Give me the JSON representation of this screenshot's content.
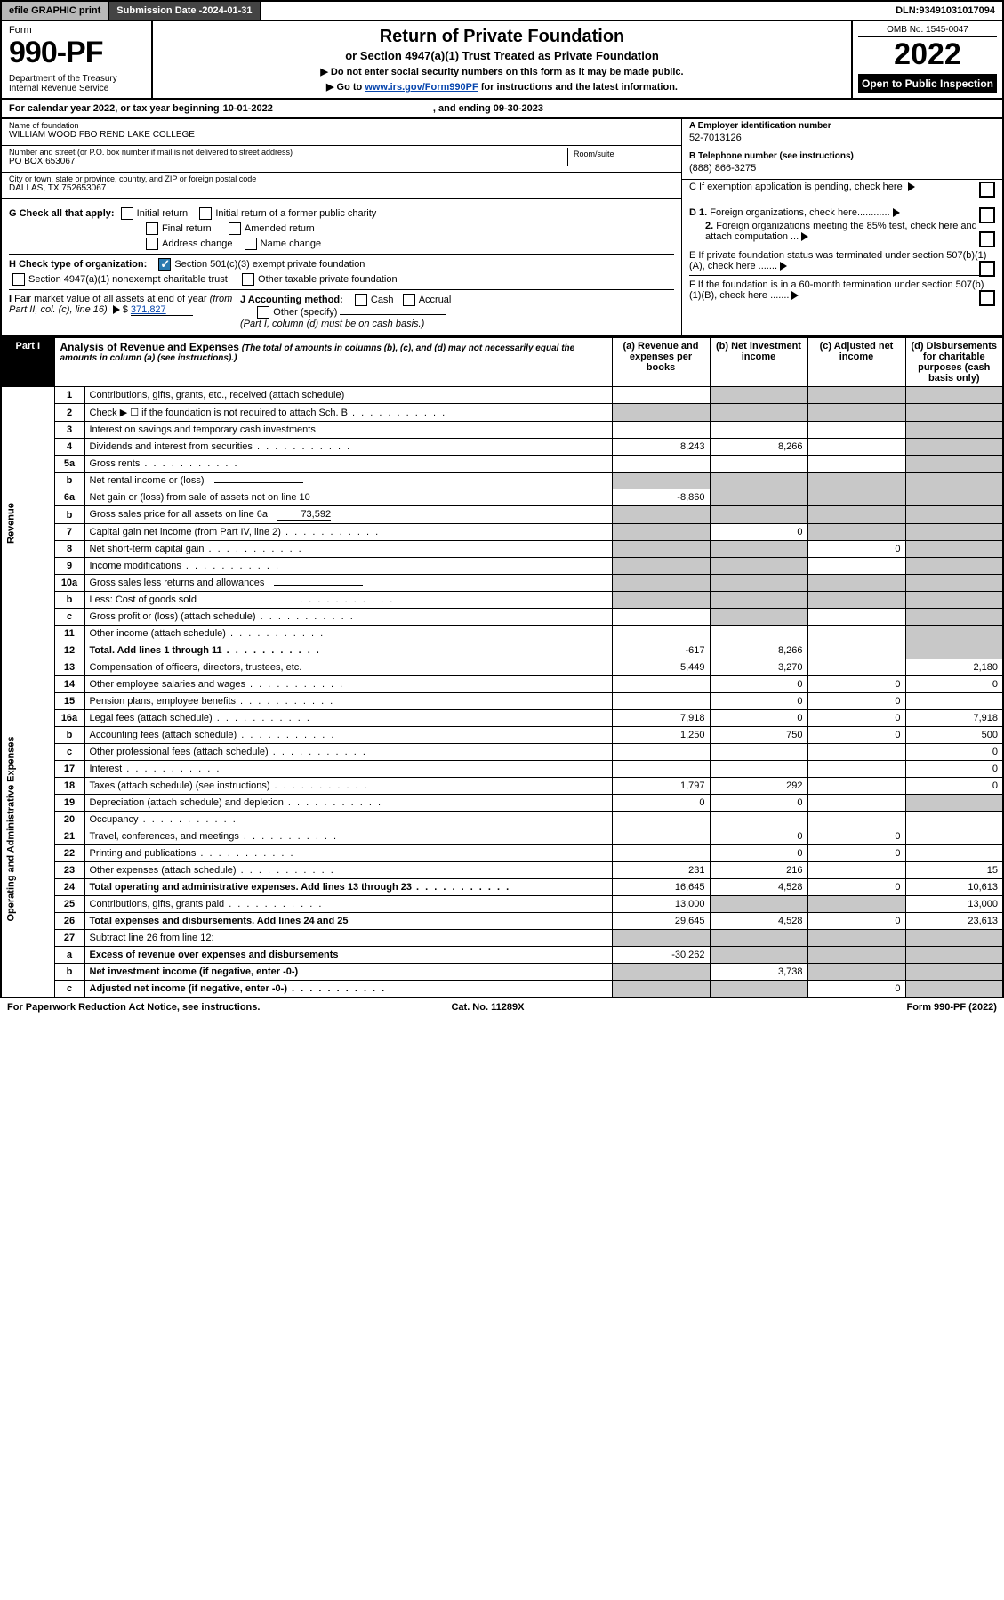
{
  "topbar": {
    "efile": "efile GRAPHIC print",
    "subdate_label": "Submission Date - ",
    "subdate": "2024-01-31",
    "dln_label": "DLN: ",
    "dln": "93491031017094"
  },
  "header": {
    "form_label": "Form",
    "form_no": "990-PF",
    "dept": "Department of the Treasury\nInternal Revenue Service",
    "title": "Return of Private Foundation",
    "sub1": "or Section 4947(a)(1) Trust Treated as Private Foundation",
    "sub2": "▶ Do not enter social security numbers on this form as it may be made public.",
    "sub3_pre": "▶ Go to ",
    "sub3_link": "www.irs.gov/Form990PF",
    "sub3_post": " for instructions and the latest information.",
    "omb": "OMB No. 1545-0047",
    "year": "2022",
    "open": "Open to Public Inspection"
  },
  "calrow": {
    "text": "For calendar year 2022, or tax year beginning ",
    "begin": "10-01-2022",
    "mid": ", and ending ",
    "end": "09-30-2023"
  },
  "foundation": {
    "name_lbl": "Name of foundation",
    "name": "WILLIAM WOOD FBO REND LAKE COLLEGE",
    "addr_lbl": "Number and street (or P.O. box number if mail is not delivered to street address)",
    "addr": "PO BOX 653067",
    "room_lbl": "Room/suite",
    "city_lbl": "City or town, state or province, country, and ZIP or foreign postal code",
    "city": "DALLAS, TX  752653067"
  },
  "right": {
    "ein_lbl": "A Employer identification number",
    "ein": "52-7013126",
    "tel_lbl": "B Telephone number (see instructions)",
    "tel": "(888) 866-3275",
    "c": "C If exemption application is pending, check here",
    "d1": "D 1. Foreign organizations, check here............",
    "d2": "2. Foreign organizations meeting the 85% test, check here and attach computation ...",
    "e": "E  If private foundation status was terminated under section 507(b)(1)(A), check here .......",
    "f": "F  If the foundation is in a 60-month termination under section 507(b)(1)(B), check here .......",
    "c_lbl": "C"
  },
  "g": {
    "lbl": "G Check all that apply:",
    "opts": [
      "Initial return",
      "Initial return of a former public charity",
      "Final return",
      "Amended return",
      "Address change",
      "Name change"
    ]
  },
  "h": {
    "lbl": "H Check type of organization:",
    "o1": "Section 501(c)(3) exempt private foundation",
    "o2": "Section 4947(a)(1) nonexempt charitable trust",
    "o3": "Other taxable private foundation"
  },
  "i": {
    "lbl": "I Fair market value of all assets at end of year (from Part II, col. (c), line 16) ▶ $",
    "val": "371,827"
  },
  "j": {
    "lbl": "J Accounting method:",
    "cash": "Cash",
    "accrual": "Accrual",
    "other": "Other (specify)",
    "note": "(Part I, column (d) must be on cash basis.)"
  },
  "part1": {
    "label": "Part I",
    "title": "Analysis of Revenue and Expenses",
    "title_note": "(The total of amounts in columns (b), (c), and (d) may not necessarily equal the amounts in column (a) (see instructions).)",
    "cols": {
      "a": "(a) Revenue and expenses per books",
      "b": "(b) Net investment income",
      "c": "(c) Adjusted net income",
      "d": "(d) Disbursements for charitable purposes (cash basis only)"
    },
    "vlabels": {
      "rev": "Revenue",
      "exp": "Operating and Administrative Expenses"
    }
  },
  "rows": [
    {
      "n": "1",
      "d": "Contributions, gifts, grants, etc., received (attach schedule)",
      "a": "",
      "b": "",
      "c": "",
      "dcol": "",
      "grey": [
        "b",
        "c",
        "d"
      ]
    },
    {
      "n": "2",
      "d": "Check ▶ ☐ if the foundation is not required to attach Sch. B",
      "a": "",
      "b": "",
      "c": "",
      "dcol": "",
      "grey": [
        "a",
        "b",
        "c",
        "d"
      ],
      "dots": true
    },
    {
      "n": "3",
      "d": "Interest on savings and temporary cash investments",
      "a": "",
      "b": "",
      "c": "",
      "dcol": "",
      "grey": [
        "d"
      ]
    },
    {
      "n": "4",
      "d": "Dividends and interest from securities",
      "a": "8,243",
      "b": "8,266",
      "c": "",
      "dcol": "",
      "grey": [
        "d"
      ],
      "dots": true
    },
    {
      "n": "5a",
      "d": "Gross rents",
      "a": "",
      "b": "",
      "c": "",
      "dcol": "",
      "grey": [
        "d"
      ],
      "dots": true
    },
    {
      "n": "b",
      "d": "Net rental income or (loss)",
      "a": "",
      "b": "",
      "c": "",
      "dcol": "",
      "grey": [
        "a",
        "b",
        "c",
        "d"
      ],
      "sub": true
    },
    {
      "n": "6a",
      "d": "Net gain or (loss) from sale of assets not on line 10",
      "a": "-8,860",
      "b": "",
      "c": "",
      "dcol": "",
      "grey": [
        "b",
        "c",
        "d"
      ]
    },
    {
      "n": "b",
      "d": "Gross sales price for all assets on line 6a",
      "a": "",
      "b": "",
      "c": "",
      "dcol": "",
      "grey": [
        "a",
        "b",
        "c",
        "d"
      ],
      "sub": true,
      "subval": "73,592"
    },
    {
      "n": "7",
      "d": "Capital gain net income (from Part IV, line 2)",
      "a": "",
      "b": "0",
      "c": "",
      "dcol": "",
      "grey": [
        "a",
        "c",
        "d"
      ],
      "dots": true
    },
    {
      "n": "8",
      "d": "Net short-term capital gain",
      "a": "",
      "b": "",
      "c": "0",
      "dcol": "",
      "grey": [
        "a",
        "b",
        "d"
      ],
      "dots": true
    },
    {
      "n": "9",
      "d": "Income modifications",
      "a": "",
      "b": "",
      "c": "",
      "dcol": "",
      "grey": [
        "a",
        "b",
        "d"
      ],
      "dots": true
    },
    {
      "n": "10a",
      "d": "Gross sales less returns and allowances",
      "a": "",
      "b": "",
      "c": "",
      "dcol": "",
      "grey": [
        "a",
        "b",
        "c",
        "d"
      ],
      "sub": true
    },
    {
      "n": "b",
      "d": "Less: Cost of goods sold",
      "a": "",
      "b": "",
      "c": "",
      "dcol": "",
      "grey": [
        "a",
        "b",
        "c",
        "d"
      ],
      "sub": true,
      "dots": true
    },
    {
      "n": "c",
      "d": "Gross profit or (loss) (attach schedule)",
      "a": "",
      "b": "",
      "c": "",
      "dcol": "",
      "grey": [
        "b",
        "d"
      ],
      "dots": true
    },
    {
      "n": "11",
      "d": "Other income (attach schedule)",
      "a": "",
      "b": "",
      "c": "",
      "dcol": "",
      "grey": [
        "d"
      ],
      "dots": true
    },
    {
      "n": "12",
      "d": "Total. Add lines 1 through 11",
      "a": "-617",
      "b": "8,266",
      "c": "",
      "dcol": "",
      "grey": [
        "d"
      ],
      "bold": true,
      "dots": true
    },
    {
      "n": "13",
      "d": "Compensation of officers, directors, trustees, etc.",
      "a": "5,449",
      "b": "3,270",
      "c": "",
      "dcol": "2,180"
    },
    {
      "n": "14",
      "d": "Other employee salaries and wages",
      "a": "",
      "b": "0",
      "c": "0",
      "dcol": "0",
      "dots": true
    },
    {
      "n": "15",
      "d": "Pension plans, employee benefits",
      "a": "",
      "b": "0",
      "c": "0",
      "dcol": "",
      "dots": true
    },
    {
      "n": "16a",
      "d": "Legal fees (attach schedule)",
      "a": "7,918",
      "b": "0",
      "c": "0",
      "dcol": "7,918",
      "dots": true
    },
    {
      "n": "b",
      "d": "Accounting fees (attach schedule)",
      "a": "1,250",
      "b": "750",
      "c": "0",
      "dcol": "500",
      "dots": true
    },
    {
      "n": "c",
      "d": "Other professional fees (attach schedule)",
      "a": "",
      "b": "",
      "c": "",
      "dcol": "0",
      "dots": true
    },
    {
      "n": "17",
      "d": "Interest",
      "a": "",
      "b": "",
      "c": "",
      "dcol": "0",
      "dots": true
    },
    {
      "n": "18",
      "d": "Taxes (attach schedule) (see instructions)",
      "a": "1,797",
      "b": "292",
      "c": "",
      "dcol": "0",
      "dots": true
    },
    {
      "n": "19",
      "d": "Depreciation (attach schedule) and depletion",
      "a": "0",
      "b": "0",
      "c": "",
      "dcol": "",
      "grey": [
        "d"
      ],
      "dots": true
    },
    {
      "n": "20",
      "d": "Occupancy",
      "a": "",
      "b": "",
      "c": "",
      "dcol": "",
      "dots": true
    },
    {
      "n": "21",
      "d": "Travel, conferences, and meetings",
      "a": "",
      "b": "0",
      "c": "0",
      "dcol": "",
      "dots": true
    },
    {
      "n": "22",
      "d": "Printing and publications",
      "a": "",
      "b": "0",
      "c": "0",
      "dcol": "",
      "dots": true
    },
    {
      "n": "23",
      "d": "Other expenses (attach schedule)",
      "a": "231",
      "b": "216",
      "c": "",
      "dcol": "15",
      "dots": true
    },
    {
      "n": "24",
      "d": "Total operating and administrative expenses. Add lines 13 through 23",
      "a": "16,645",
      "b": "4,528",
      "c": "0",
      "dcol": "10,613",
      "bold": true,
      "dots": true
    },
    {
      "n": "25",
      "d": "Contributions, gifts, grants paid",
      "a": "13,000",
      "b": "",
      "c": "",
      "dcol": "13,000",
      "grey": [
        "b",
        "c"
      ],
      "dots": true
    },
    {
      "n": "26",
      "d": "Total expenses and disbursements. Add lines 24 and 25",
      "a": "29,645",
      "b": "4,528",
      "c": "0",
      "dcol": "23,613",
      "bold": true
    },
    {
      "n": "27",
      "d": "Subtract line 26 from line 12:",
      "a": "",
      "b": "",
      "c": "",
      "dcol": "",
      "grey": [
        "a",
        "b",
        "c",
        "d"
      ]
    },
    {
      "n": "a",
      "d": "Excess of revenue over expenses and disbursements",
      "a": "-30,262",
      "b": "",
      "c": "",
      "dcol": "",
      "grey": [
        "b",
        "c",
        "d"
      ],
      "bold": true
    },
    {
      "n": "b",
      "d": "Net investment income (if negative, enter -0-)",
      "a": "",
      "b": "3,738",
      "c": "",
      "dcol": "",
      "grey": [
        "a",
        "c",
        "d"
      ],
      "bold": true
    },
    {
      "n": "c",
      "d": "Adjusted net income (if negative, enter -0-)",
      "a": "",
      "b": "",
      "c": "0",
      "dcol": "",
      "grey": [
        "a",
        "b",
        "d"
      ],
      "bold": true,
      "dots": true
    }
  ],
  "footer": {
    "left": "For Paperwork Reduction Act Notice, see instructions.",
    "mid": "Cat. No. 11289X",
    "right": "Form 990-PF (2022)"
  },
  "colors": {
    "grey_cell": "#c8c8c8",
    "link": "#0645ad",
    "check_on": "#2a7ab0",
    "topbar_grey": "#b8b8b8",
    "topbar_dark": "#444444"
  }
}
